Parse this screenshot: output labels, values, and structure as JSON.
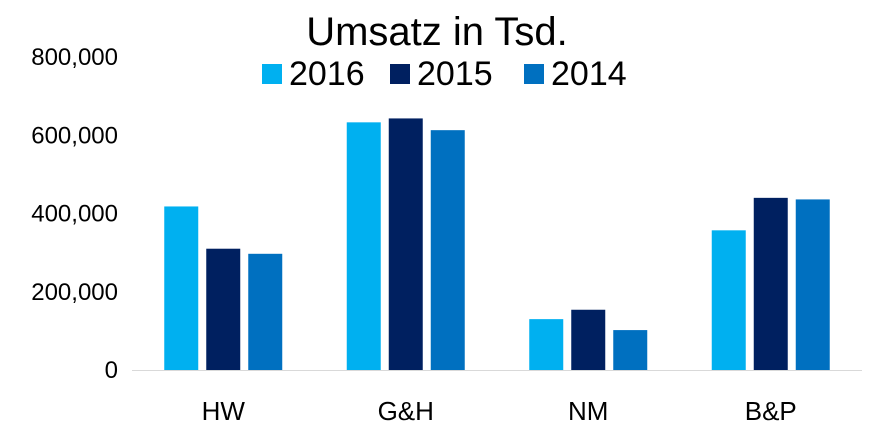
{
  "chart_data": {
    "type": "bar",
    "title": "Umsatz in Tsd.",
    "categories": [
      "HW",
      "G&H",
      "NM",
      "B&P"
    ],
    "series": [
      {
        "name": "2016",
        "color": "#00B0F0",
        "values": [
          418000,
          633000,
          130000,
          357000
        ]
      },
      {
        "name": "2015",
        "color": "#002060",
        "values": [
          310000,
          643000,
          154000,
          440000
        ]
      },
      {
        "name": "2014",
        "color": "#0070C0",
        "values": [
          297000,
          613000,
          102000,
          436000
        ]
      }
    ],
    "ylim": [
      0,
      800000
    ],
    "yticks": [
      0,
      200000,
      400000,
      600000,
      800000
    ],
    "ytick_labels": [
      "0",
      "200,000",
      "400,000",
      "600,000",
      "800,000"
    ],
    "legend_position": "top",
    "grid": false
  }
}
